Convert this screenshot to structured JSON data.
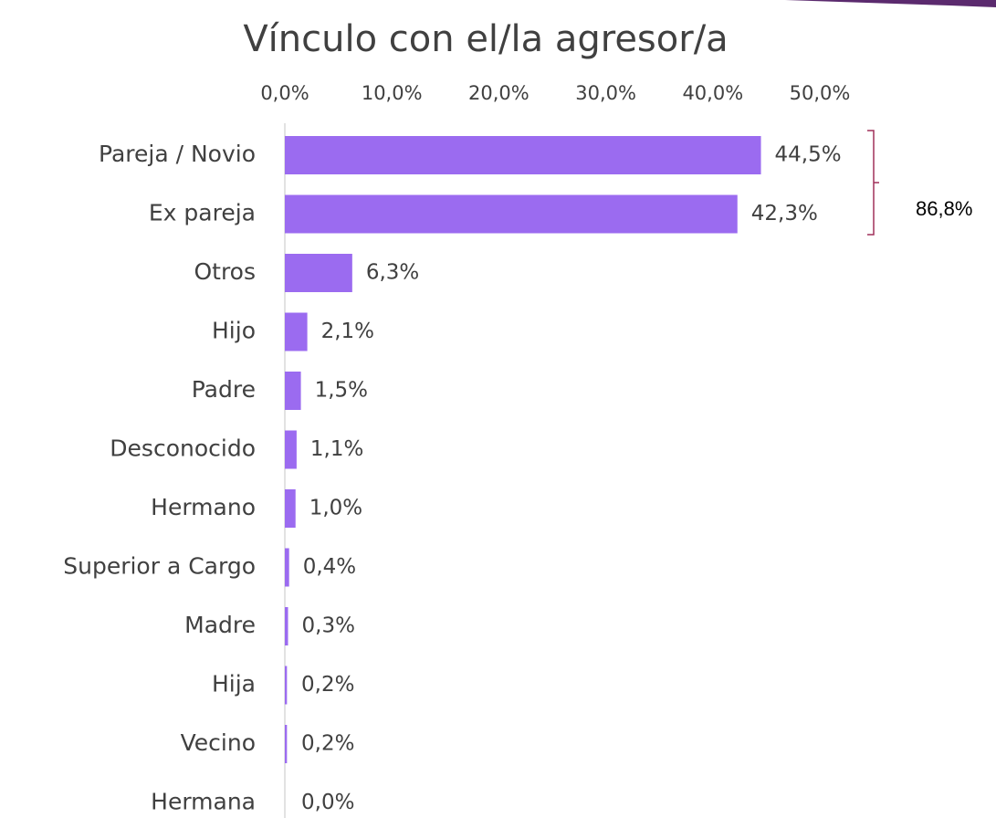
{
  "chart_data": {
    "type": "barh",
    "title": "Vínculo con el/la agresor/a",
    "categories": [
      "Pareja / Novio",
      "Ex pareja",
      "Otros",
      "Hijo",
      "Padre",
      "Desconocido",
      "Hermano",
      "Superior a Cargo",
      "Madre",
      "Hija",
      "Vecino",
      "Hermana"
    ],
    "values": [
      44.5,
      42.3,
      6.3,
      2.1,
      1.5,
      1.1,
      1.0,
      0.4,
      0.3,
      0.2,
      0.2,
      0.0
    ],
    "value_labels": [
      "44,5%",
      "42,3%",
      "6,3%",
      "2,1%",
      "1,5%",
      "1,1%",
      "1,0%",
      "0,4%",
      "0,3%",
      "0,2%",
      "0,2%",
      "0,0%"
    ],
    "color": "#9b6bf0",
    "xlim": [
      0,
      50
    ],
    "xticks": [
      {
        "value": 0,
        "label": "0,0%"
      },
      {
        "value": 10,
        "label": "10,0%"
      },
      {
        "value": 20,
        "label": "20,0%"
      },
      {
        "value": 30,
        "label": "30,0%"
      },
      {
        "value": 40,
        "label": "40,0%"
      },
      {
        "value": 50,
        "label": "50,0%"
      }
    ],
    "annotation": "86,8%"
  }
}
